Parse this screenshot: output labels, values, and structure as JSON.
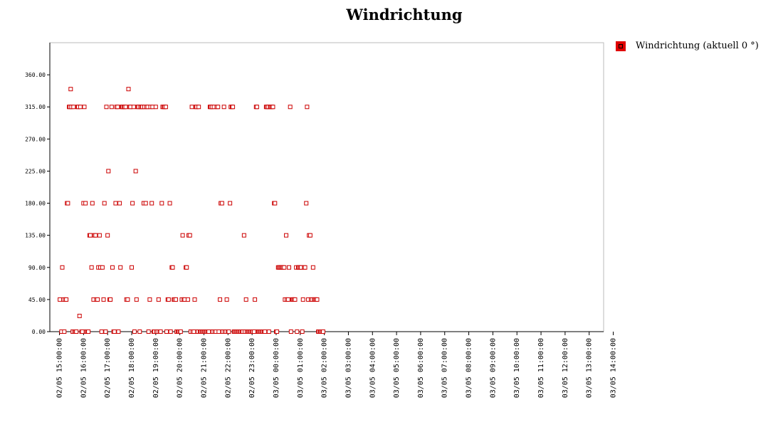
{
  "chart_data": {
    "type": "scatter",
    "title": "Windrichtung",
    "legend": {
      "position": "top-right",
      "label": "Windrichtung (aktuell 0 °)"
    },
    "ylim": [
      0,
      405
    ],
    "yticks": [
      0,
      45,
      90,
      135,
      180,
      225,
      270,
      315,
      360
    ],
    "ytick_labels": [
      "0.00",
      "45.00",
      "90.00",
      "135.00",
      "180.00",
      "225.00",
      "270.00",
      "315.00",
      "360.00"
    ],
    "xlim": [
      "02/05 14:36",
      "03/05 13:36"
    ],
    "xtick_labels": [
      "02/05 15:00:00",
      "02/05 16:00:00",
      "02/05 17:00:00",
      "02/05 18:00:00",
      "02/05 19:00:00",
      "02/05 20:00:00",
      "02/05 21:00:00",
      "02/05 22:00:00",
      "02/05 23:00:00",
      "03/05 00:00:00",
      "03/05 01:00:00",
      "03/05 02:00:00",
      "03/05 03:00:00",
      "03/05 04:00:00",
      "03/05 05:00:00",
      "03/05 06:00:00",
      "03/05 07:00:00",
      "03/05 08:00:00",
      "03/05 09:00:00",
      "03/05 10:00:00",
      "03/05 11:00:00",
      "03/05 12:00:00",
      "03/05 13:00:00",
      "03/05 14:00:00"
    ],
    "grid": false,
    "marker": "hollow-square",
    "series": [
      {
        "color": "#cc0000",
        "points": [
          [
            "02/05 15:01",
            45
          ],
          [
            "02/05 15:05",
            0
          ],
          [
            "02/05 15:07",
            90
          ],
          [
            "02/05 15:10",
            45
          ],
          [
            "02/05 15:12",
            0
          ],
          [
            "02/05 15:14",
            45
          ],
          [
            "02/05 15:17",
            45
          ],
          [
            "02/05 15:19",
            180
          ],
          [
            "02/05 15:21",
            180
          ],
          [
            "02/05 15:24",
            315
          ],
          [
            "02/05 15:26",
            315
          ],
          [
            "02/05 15:28",
            340
          ],
          [
            "02/05 15:30",
            315
          ],
          [
            "02/05 15:33",
            0
          ],
          [
            "02/05 15:35",
            315
          ],
          [
            "02/05 15:37",
            0
          ],
          [
            "02/05 15:40",
            0
          ],
          [
            "02/05 15:42",
            0
          ],
          [
            "02/05 15:45",
            315
          ],
          [
            "02/05 15:47",
            315
          ],
          [
            "02/05 15:50",
            22
          ],
          [
            "02/05 15:52",
            315
          ],
          [
            "02/05 15:55",
            0
          ],
          [
            "02/05 15:57",
            0
          ],
          [
            "02/05 16:00",
            180
          ],
          [
            "02/05 16:02",
            315
          ],
          [
            "02/05 16:05",
            180
          ],
          [
            "02/05 16:07",
            0
          ],
          [
            "02/05 16:10",
            0
          ],
          [
            "02/05 16:12",
            0
          ],
          [
            "02/05 16:15",
            135
          ],
          [
            "02/05 16:17",
            135
          ],
          [
            "02/05 16:20",
            90
          ],
          [
            "02/05 16:22",
            180
          ],
          [
            "02/05 16:25",
            45
          ],
          [
            "02/05 16:27",
            135
          ],
          [
            "02/05 16:30",
            135
          ],
          [
            "02/05 16:32",
            45
          ],
          [
            "02/05 16:35",
            45
          ],
          [
            "02/05 16:37",
            90
          ],
          [
            "02/05 16:40",
            135
          ],
          [
            "02/05 16:42",
            90
          ],
          [
            "02/05 16:45",
            0
          ],
          [
            "02/05 16:47",
            90
          ],
          [
            "02/05 16:50",
            45
          ],
          [
            "02/05 16:52",
            180
          ],
          [
            "02/05 16:55",
            0
          ],
          [
            "02/05 16:57",
            315
          ],
          [
            "02/05 17:00",
            135
          ],
          [
            "02/05 17:02",
            225
          ],
          [
            "02/05 17:05",
            45
          ],
          [
            "02/05 17:07",
            45
          ],
          [
            "02/05 17:10",
            315
          ],
          [
            "02/05 17:12",
            90
          ],
          [
            "02/05 17:15",
            0
          ],
          [
            "02/05 17:17",
            0
          ],
          [
            "02/05 17:20",
            180
          ],
          [
            "02/05 17:22",
            315
          ],
          [
            "02/05 17:25",
            315
          ],
          [
            "02/05 17:27",
            0
          ],
          [
            "02/05 17:30",
            180
          ],
          [
            "02/05 17:32",
            90
          ],
          [
            "02/05 17:35",
            315
          ],
          [
            "02/05 17:37",
            315
          ],
          [
            "02/05 17:40",
            315
          ],
          [
            "02/05 17:42",
            315
          ],
          [
            "02/05 17:45",
            315
          ],
          [
            "02/05 17:47",
            45
          ],
          [
            "02/05 17:50",
            45
          ],
          [
            "02/05 17:52",
            340
          ],
          [
            "02/05 17:55",
            315
          ],
          [
            "02/05 17:57",
            315
          ],
          [
            "02/05 18:00",
            90
          ],
          [
            "02/05 18:02",
            180
          ],
          [
            "02/05 18:05",
            315
          ],
          [
            "02/05 18:07",
            0
          ],
          [
            "02/05 18:10",
            225
          ],
          [
            "02/05 18:12",
            45
          ],
          [
            "02/05 18:15",
            315
          ],
          [
            "02/05 18:17",
            315
          ],
          [
            "02/05 18:20",
            0
          ],
          [
            "02/05 18:22",
            315
          ],
          [
            "02/05 18:25",
            315
          ],
          [
            "02/05 18:27",
            315
          ],
          [
            "02/05 18:30",
            180
          ],
          [
            "02/05 18:32",
            315
          ],
          [
            "02/05 18:35",
            180
          ],
          [
            "02/05 18:37",
            315
          ],
          [
            "02/05 18:40",
            315
          ],
          [
            "02/05 18:42",
            0
          ],
          [
            "02/05 18:45",
            45
          ],
          [
            "02/05 18:47",
            315
          ],
          [
            "02/05 18:50",
            180
          ],
          [
            "02/05 18:52",
            315
          ],
          [
            "02/05 18:55",
            0
          ],
          [
            "02/05 18:57",
            0
          ],
          [
            "02/05 19:00",
            315
          ],
          [
            "02/05 19:02",
            0
          ],
          [
            "02/05 19:05",
            0
          ],
          [
            "02/05 19:07",
            45
          ],
          [
            "02/05 19:10",
            0
          ],
          [
            "02/05 19:12",
            0
          ],
          [
            "02/05 19:15",
            180
          ],
          [
            "02/05 19:17",
            315
          ],
          [
            "02/05 19:20",
            315
          ],
          [
            "02/05 19:22",
            315
          ],
          [
            "02/05 19:25",
            315
          ],
          [
            "02/05 19:27",
            0
          ],
          [
            "02/05 19:30",
            45
          ],
          [
            "02/05 19:32",
            45
          ],
          [
            "02/05 19:35",
            180
          ],
          [
            "02/05 19:37",
            0
          ],
          [
            "02/05 19:40",
            90
          ],
          [
            "02/05 19:42",
            90
          ],
          [
            "02/05 19:45",
            45
          ],
          [
            "02/05 19:47",
            45
          ],
          [
            "02/05 19:50",
            45
          ],
          [
            "02/05 19:52",
            0
          ],
          [
            "02/05 19:55",
            0
          ],
          [
            "02/05 19:57",
            0
          ],
          [
            "02/05 20:00",
            0
          ],
          [
            "02/05 20:02",
            0
          ],
          [
            "02/05 20:05",
            45
          ],
          [
            "02/05 20:07",
            135
          ],
          [
            "02/05 20:10",
            45
          ],
          [
            "02/05 20:12",
            45
          ],
          [
            "02/05 20:15",
            90
          ],
          [
            "02/05 20:17",
            90
          ],
          [
            "02/05 20:20",
            45
          ],
          [
            "02/05 20:22",
            135
          ],
          [
            "02/05 20:25",
            135
          ],
          [
            "02/05 20:27",
            0
          ],
          [
            "02/05 20:30",
            315
          ],
          [
            "02/05 20:32",
            0
          ],
          [
            "02/05 20:35",
            0
          ],
          [
            "02/05 20:37",
            45
          ],
          [
            "02/05 20:40",
            315
          ],
          [
            "02/05 20:42",
            315
          ],
          [
            "02/05 20:45",
            0
          ],
          [
            "02/05 20:47",
            315
          ],
          [
            "02/05 20:50",
            0
          ],
          [
            "02/05 20:52",
            0
          ],
          [
            "02/05 20:55",
            0
          ],
          [
            "02/05 20:57",
            0
          ],
          [
            "02/05 21:00",
            0
          ],
          [
            "02/05 21:02",
            0
          ],
          [
            "02/05 21:05",
            0
          ],
          [
            "02/05 21:07",
            0
          ],
          [
            "02/05 21:10",
            0
          ],
          [
            "02/05 21:12",
            0
          ],
          [
            "02/05 21:15",
            315
          ],
          [
            "02/05 21:17",
            315
          ],
          [
            "02/05 21:20",
            315
          ],
          [
            "02/05 21:22",
            0
          ],
          [
            "02/05 21:25",
            315
          ],
          [
            "02/05 21:27",
            0
          ],
          [
            "02/05 21:30",
            0
          ],
          [
            "02/05 21:32",
            315
          ],
          [
            "02/05 21:35",
            315
          ],
          [
            "02/05 21:37",
            0
          ],
          [
            "02/05 21:40",
            45
          ],
          [
            "02/05 21:42",
            180
          ],
          [
            "02/05 21:45",
            180
          ],
          [
            "02/05 21:47",
            0
          ],
          [
            "02/05 21:50",
            315
          ],
          [
            "02/05 21:52",
            0
          ],
          [
            "02/05 21:55",
            0
          ],
          [
            "02/05 21:57",
            45
          ],
          [
            "02/05 22:00",
            0
          ],
          [
            "02/05 22:02",
            0
          ],
          [
            "02/05 22:05",
            180
          ],
          [
            "02/05 22:07",
            315
          ],
          [
            "02/05 22:10",
            315
          ],
          [
            "02/05 22:12",
            315
          ],
          [
            "02/05 22:15",
            0
          ],
          [
            "02/05 22:17",
            0
          ],
          [
            "02/05 22:20",
            0
          ],
          [
            "02/05 22:22",
            0
          ],
          [
            "02/05 22:25",
            0
          ],
          [
            "02/05 22:27",
            0
          ],
          [
            "02/05 22:30",
            0
          ],
          [
            "02/05 22:32",
            0
          ],
          [
            "02/05 22:35",
            0
          ],
          [
            "02/05 22:37",
            0
          ],
          [
            "02/05 22:40",
            135
          ],
          [
            "02/05 22:42",
            0
          ],
          [
            "02/05 22:45",
            45
          ],
          [
            "02/05 22:47",
            0
          ],
          [
            "02/05 22:50",
            0
          ],
          [
            "02/05 22:52",
            0
          ],
          [
            "02/05 22:55",
            0
          ],
          [
            "02/05 22:57",
            0
          ],
          [
            "02/05 23:00",
            0
          ],
          [
            "02/05 23:02",
            0
          ],
          [
            "02/05 23:05",
            0
          ],
          [
            "02/05 23:07",
            45
          ],
          [
            "02/05 23:10",
            315
          ],
          [
            "02/05 23:12",
            315
          ],
          [
            "02/05 23:15",
            0
          ],
          [
            "02/05 23:17",
            0
          ],
          [
            "02/05 23:20",
            0
          ],
          [
            "02/05 23:22",
            0
          ],
          [
            "02/05 23:25",
            0
          ],
          [
            "02/05 23:27",
            0
          ],
          [
            "02/05 23:30",
            0
          ],
          [
            "02/05 23:32",
            0
          ],
          [
            "02/05 23:35",
            315
          ],
          [
            "02/05 23:37",
            315
          ],
          [
            "02/05 23:40",
            315
          ],
          [
            "02/05 23:42",
            0
          ],
          [
            "02/05 23:45",
            315
          ],
          [
            "02/05 23:47",
            315
          ],
          [
            "02/05 23:50",
            315
          ],
          [
            "02/05 23:52",
            315
          ],
          [
            "02/05 23:55",
            180
          ],
          [
            "02/05 23:57",
            180
          ],
          [
            "03/05 00:00",
            0
          ],
          [
            "03/05 00:02",
            0
          ],
          [
            "03/05 00:05",
            90
          ],
          [
            "03/05 00:07",
            90
          ],
          [
            "03/05 00:10",
            90
          ],
          [
            "03/05 00:12",
            90
          ],
          [
            "03/05 00:15",
            90
          ],
          [
            "03/05 00:17",
            90
          ],
          [
            "03/05 00:20",
            90
          ],
          [
            "03/05 00:22",
            45
          ],
          [
            "03/05 00:25",
            135
          ],
          [
            "03/05 00:27",
            45
          ],
          [
            "03/05 00:30",
            45
          ],
          [
            "03/05 00:32",
            90
          ],
          [
            "03/05 00:35",
            315
          ],
          [
            "03/05 00:37",
            0
          ],
          [
            "03/05 00:40",
            45
          ],
          [
            "03/05 00:42",
            45
          ],
          [
            "03/05 00:45",
            45
          ],
          [
            "03/05 00:47",
            45
          ],
          [
            "03/05 00:50",
            90
          ],
          [
            "03/05 00:52",
            0
          ],
          [
            "03/05 00:55",
            90
          ],
          [
            "03/05 00:57",
            90
          ],
          [
            "03/05 01:00",
            90
          ],
          [
            "03/05 01:02",
            90
          ],
          [
            "03/05 01:05",
            0
          ],
          [
            "03/05 01:07",
            45
          ],
          [
            "03/05 01:10",
            90
          ],
          [
            "03/05 01:12",
            90
          ],
          [
            "03/05 01:15",
            180
          ],
          [
            "03/05 01:17",
            315
          ],
          [
            "03/05 01:20",
            45
          ],
          [
            "03/05 01:22",
            135
          ],
          [
            "03/05 01:25",
            135
          ],
          [
            "03/05 01:27",
            45
          ],
          [
            "03/05 01:30",
            45
          ],
          [
            "03/05 01:32",
            90
          ],
          [
            "03/05 01:35",
            45
          ],
          [
            "03/05 01:37",
            45
          ],
          [
            "03/05 01:40",
            45
          ],
          [
            "03/05 01:42",
            45
          ],
          [
            "03/05 01:45",
            0
          ],
          [
            "03/05 01:47",
            0
          ],
          [
            "03/05 01:50",
            0
          ],
          [
            "03/05 01:52",
            0
          ],
          [
            "03/05 01:55",
            0
          ],
          [
            "03/05 01:57",
            0
          ]
        ]
      }
    ]
  }
}
